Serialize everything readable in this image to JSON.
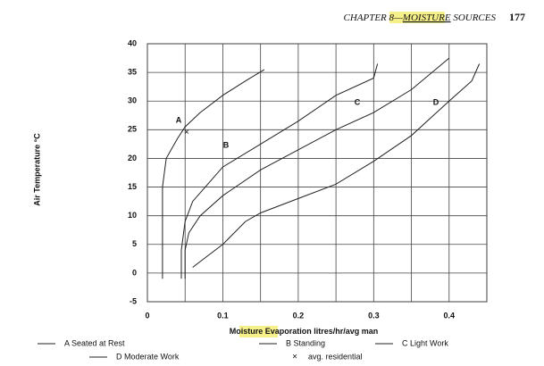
{
  "page_header": {
    "parts": [
      "CHAPTER 8—",
      "MOISTURE",
      " SOURCES"
    ],
    "page_number": "177"
  },
  "chart_data": {
    "type": "line",
    "ylabel": "Air Temperature °C",
    "xlabel_parts": [
      "Moisture",
      " Evaporation litres/hr/avg man"
    ],
    "xlim": [
      0,
      0.45
    ],
    "ylim": [
      -5,
      40
    ],
    "xticks": [
      0,
      0.1,
      0.2,
      0.3,
      0.4
    ],
    "xminor": [
      0.05,
      0.15,
      0.25,
      0.35,
      0.45
    ],
    "yticks": [
      -5,
      0,
      5,
      10,
      15,
      20,
      25,
      30,
      35,
      40
    ],
    "grid": true,
    "annotations": [
      "A",
      "B",
      "C",
      "D"
    ],
    "series": [
      {
        "name": "A Seated at Rest",
        "color": "#222",
        "x": [
          0.02,
          0.02,
          0.025,
          0.04,
          0.05,
          0.07,
          0.1,
          0.13,
          0.155
        ],
        "values": [
          -1,
          15,
          20,
          23.5,
          25.5,
          28,
          31,
          33.5,
          35.5
        ]
      },
      {
        "name": "B Standing",
        "color": "#222",
        "x": [
          0.045,
          0.045,
          0.05,
          0.06,
          0.08,
          0.1,
          0.15,
          0.2,
          0.25,
          0.3,
          0.305
        ],
        "values": [
          -1,
          4,
          9,
          12.5,
          15.5,
          18.5,
          22.5,
          26.5,
          31,
          34,
          36.5
        ]
      },
      {
        "name": "C Light Work",
        "color": "#222",
        "x": [
          0.05,
          0.05,
          0.055,
          0.07,
          0.1,
          0.15,
          0.2,
          0.25,
          0.3,
          0.35,
          0.4
        ],
        "values": [
          -1,
          4,
          7,
          10,
          13.5,
          18,
          21.5,
          25,
          28,
          32,
          37.5
        ]
      },
      {
        "name": "D Moderate Work",
        "color": "#222",
        "x": [
          0.06,
          0.07,
          0.1,
          0.13,
          0.15,
          0.2,
          0.25,
          0.3,
          0.35,
          0.4,
          0.43,
          0.44
        ],
        "values": [
          1,
          2,
          5,
          9,
          10.5,
          13,
          15.5,
          19.5,
          24,
          30,
          33.5,
          36.5
        ]
      }
    ],
    "points": {
      "name": "avg. residential",
      "marker": "×",
      "x": [
        0.052
      ],
      "values": [
        24.5
      ]
    }
  }
}
